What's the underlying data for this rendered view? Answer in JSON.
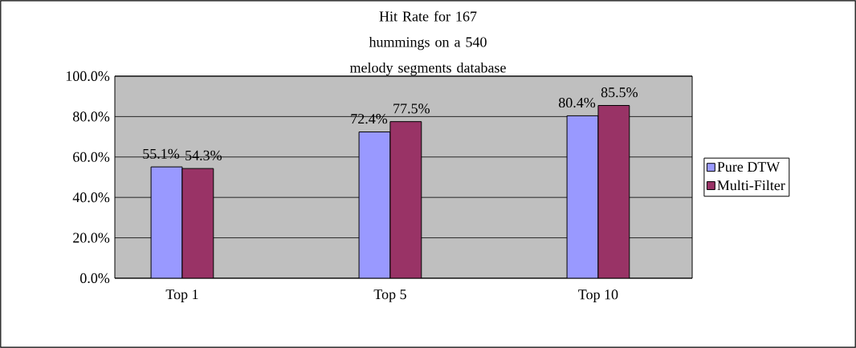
{
  "chart_data": {
    "type": "bar",
    "title": "Hit Rate for 167 hummings on a 540 melody segments database",
    "categories": [
      "Top 1",
      "Top 5",
      "Top 10"
    ],
    "series": [
      {
        "name": "Pure DTW",
        "color": "#9999ff",
        "values": [
          55.1,
          72.4,
          80.4
        ],
        "value_labels": [
          "55.1%",
          "72.4%",
          "80.4%"
        ]
      },
      {
        "name": "Multi-Filter",
        "color": "#993366",
        "values": [
          54.3,
          77.5,
          85.5
        ],
        "value_labels": [
          "54.3%",
          "77.5%",
          "85.5%"
        ]
      }
    ],
    "ylim": [
      0,
      100
    ],
    "yticks": [
      {
        "value": 0,
        "label": "0.0%"
      },
      {
        "value": 20,
        "label": "20.0%"
      },
      {
        "value": 40,
        "label": "40.0%"
      },
      {
        "value": 60,
        "label": "60.0%"
      },
      {
        "value": 80,
        "label": "80.0%"
      },
      {
        "value": 100,
        "label": "100.0%"
      }
    ],
    "grid": "y",
    "legend": "right"
  }
}
